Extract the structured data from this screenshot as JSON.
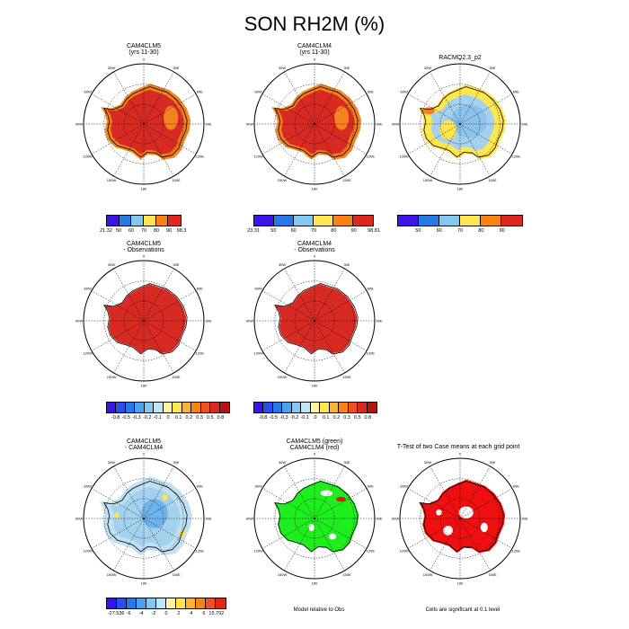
{
  "figure_title": "SON RH2M (%)",
  "chart_data": [
    {
      "type": "heatmap",
      "id": "p1",
      "title": [
        "CAM4CLM5",
        "(yrs 11-30)"
      ],
      "dominant": "high RH (90-98.3)",
      "colorbar_id": "cb1"
    },
    {
      "type": "heatmap",
      "id": "p2",
      "title": [
        "CAM4CLM4",
        "(yrs 11-30)"
      ],
      "dominant": "high RH (90-98.81)",
      "colorbar_id": "cb2"
    },
    {
      "type": "heatmap",
      "id": "p3",
      "title": [
        "RACMO2.3_p2"
      ],
      "dominant": "60-80",
      "colorbar_id": "cb3"
    },
    {
      "type": "heatmap",
      "id": "p4",
      "title": [
        "CAM4CLM5",
        "- Observations"
      ],
      "dominant": "> 0.8",
      "colorbar_id": "cb4"
    },
    {
      "type": "heatmap",
      "id": "p5",
      "title": [
        "CAM4CLM4",
        "- Observations"
      ],
      "dominant": "> 0.8",
      "colorbar_id": "cb5"
    },
    {
      "type": "heatmap",
      "id": "p7",
      "title": [
        "CAM4CLM5",
        "- CAM4CLM4"
      ],
      "dominant": "-2 to 0",
      "colorbar_id": "cb7"
    },
    {
      "type": "heatmap",
      "id": "p8",
      "title": [
        "CAM4CLM5 (green)",
        "CAM4CLM4 (red)"
      ],
      "dominant": "green",
      "note": "Model relative to Obs"
    },
    {
      "type": "heatmap",
      "id": "p9",
      "title": [
        "T-Test of two Case means at each grid point"
      ],
      "dominant": "red",
      "note": "Cells are significant at 0.1 level"
    }
  ],
  "map_labels": {
    "lon_top": "0",
    "lon_30w": "30W",
    "lon_30e": "30E",
    "lon_60w": "60W",
    "lon_60e": "60E",
    "lon_90w": "90W",
    "lon_90e": "90E",
    "lon_120w": "120W",
    "lon_120e": "120E",
    "lon_150w": "150W",
    "lon_150e": "150E",
    "lon_bottom": "180"
  },
  "colorbars": {
    "cb1": {
      "colors": [
        "#3c14e6",
        "#2878e6",
        "#82c8f0",
        "#ffe650",
        "#fa8214",
        "#dc281e"
      ],
      "labels": [
        "21.32",
        "50",
        "60",
        "70",
        "80",
        "90",
        "98.3"
      ]
    },
    "cb2": {
      "colors": [
        "#3c14e6",
        "#2878e6",
        "#82c8f0",
        "#ffe650",
        "#fa8214",
        "#dc281e"
      ],
      "labels": [
        "23.31",
        "50",
        "60",
        "70",
        "80",
        "90",
        "98.81"
      ]
    },
    "cb3": {
      "colors": [
        "#3c14e6",
        "#2878e6",
        "#82c8f0",
        "#ffe650",
        "#fa8214",
        "#dc281e"
      ],
      "labels": [
        "",
        "50",
        "60",
        "70",
        "80",
        "90",
        ""
      ]
    },
    "cb4": {
      "colors": [
        "#3c14e6",
        "#2850e6",
        "#2878e6",
        "#4ca0f0",
        "#82c8f0",
        "#bee6f5",
        "#fff5a0",
        "#ffe650",
        "#fab432",
        "#fa8214",
        "#f05028",
        "#dc281e",
        "#b41414"
      ],
      "labels": [
        "-0.8",
        "-0.5",
        "-0.3",
        "-0.2",
        "-0.1",
        "0",
        "0.1",
        "0.2",
        "0.3",
        "0.5",
        "0.8"
      ]
    },
    "cb5": {
      "colors": [
        "#3c14e6",
        "#2850e6",
        "#2878e6",
        "#4ca0f0",
        "#82c8f0",
        "#bee6f5",
        "#fff5a0",
        "#ffe650",
        "#fab432",
        "#fa8214",
        "#f05028",
        "#dc281e",
        "#b41414"
      ],
      "labels": [
        "-0.8",
        "-0.5",
        "-0.3",
        "-0.2",
        "-0.1",
        "0",
        "0.1",
        "0.2",
        "0.3",
        "0.5",
        "0.8"
      ]
    },
    "cb7": {
      "colors": [
        "#3c14e6",
        "#2850e6",
        "#2878e6",
        "#4ca0f0",
        "#82c8f0",
        "#bee6f5",
        "#fff5a0",
        "#ffe650",
        "#fab432",
        "#fa8214",
        "#f05028",
        "#dc281e"
      ],
      "labels": [
        "-27.536",
        "-6",
        "-4",
        "-2",
        "0",
        "2",
        "4",
        "6",
        "15.792"
      ]
    }
  },
  "colors": {
    "deep_red": "#d62a22",
    "orange": "#f58220",
    "yellow": "#ffe650",
    "light_blue": "#a4d2ee",
    "blue": "#6cb4ee",
    "green": "#1eee1e",
    "bright_red": "#ee1010"
  }
}
